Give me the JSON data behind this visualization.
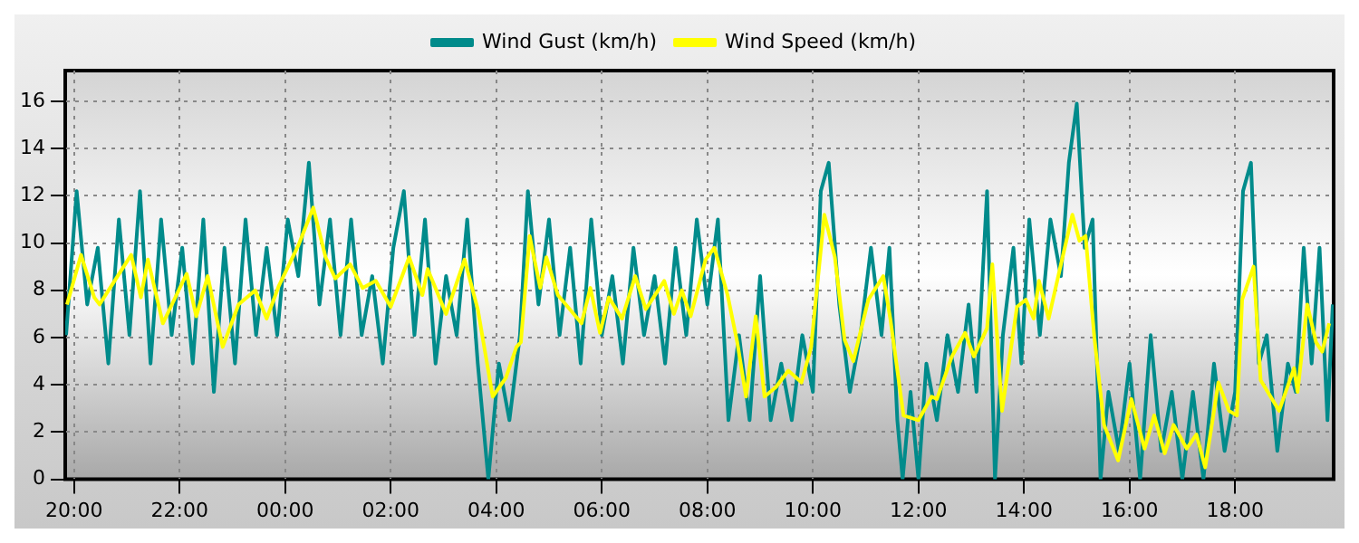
{
  "chart_data": {
    "type": "line",
    "legend": "top",
    "grid": true,
    "marker": "none",
    "line_style": "solid",
    "xlim": [
      "2000-01-01T19:50",
      "2000-01-02T19:52"
    ],
    "xticks": [
      {
        "value": "2000-01-01T20:00",
        "label": "20:00"
      },
      {
        "value": "2000-01-01T22:00",
        "label": "22:00"
      },
      {
        "value": "2000-01-02T00:00",
        "label": "00:00"
      },
      {
        "value": "2000-01-02T02:00",
        "label": "02:00"
      },
      {
        "value": "2000-01-02T04:00",
        "label": "04:00"
      },
      {
        "value": "2000-01-02T06:00",
        "label": "06:00"
      },
      {
        "value": "2000-01-02T08:00",
        "label": "08:00"
      },
      {
        "value": "2000-01-02T10:00",
        "label": "10:00"
      },
      {
        "value": "2000-01-02T12:00",
        "label": "12:00"
      },
      {
        "value": "2000-01-02T14:00",
        "label": "14:00"
      },
      {
        "value": "2000-01-02T16:00",
        "label": "16:00"
      },
      {
        "value": "2000-01-02T18:00",
        "label": "18:00"
      }
    ],
    "ylim": [
      0,
      17.3
    ],
    "yticks": [
      0,
      2,
      4,
      6,
      8,
      10,
      12,
      14,
      16
    ],
    "series": [
      {
        "name": "Wind Gust (km/h)",
        "color": "#008b8b",
        "x": [
          "2000-01-01T19:51",
          "2000-01-01T20:03",
          "2000-01-01T20:15",
          "2000-01-01T20:27",
          "2000-01-01T20:39",
          "2000-01-01T20:51",
          "2000-01-01T21:03",
          "2000-01-01T21:15",
          "2000-01-01T21:27",
          "2000-01-01T21:39",
          "2000-01-01T21:51",
          "2000-01-01T22:03",
          "2000-01-01T22:15",
          "2000-01-01T22:27",
          "2000-01-01T22:39",
          "2000-01-01T22:51",
          "2000-01-01T23:03",
          "2000-01-01T23:15",
          "2000-01-01T23:27",
          "2000-01-01T23:39",
          "2000-01-01T23:51",
          "2000-01-02T00:03",
          "2000-01-02T00:15",
          "2000-01-02T00:27",
          "2000-01-02T00:39",
          "2000-01-02T00:51",
          "2000-01-02T01:03",
          "2000-01-02T01:15",
          "2000-01-02T01:27",
          "2000-01-02T01:39",
          "2000-01-02T01:51",
          "2000-01-02T02:03",
          "2000-01-02T02:15",
          "2000-01-02T02:27",
          "2000-01-02T02:39",
          "2000-01-02T02:51",
          "2000-01-02T03:03",
          "2000-01-02T03:15",
          "2000-01-02T03:27",
          "2000-01-02T03:39",
          "2000-01-02T03:51",
          "2000-01-02T04:03",
          "2000-01-02T04:15",
          "2000-01-02T04:27",
          "2000-01-02T04:36",
          "2000-01-02T04:48",
          "2000-01-02T05:00",
          "2000-01-02T05:12",
          "2000-01-02T05:24",
          "2000-01-02T05:36",
          "2000-01-02T05:48",
          "2000-01-02T06:00",
          "2000-01-02T06:12",
          "2000-01-02T06:24",
          "2000-01-02T06:36",
          "2000-01-02T06:48",
          "2000-01-02T07:00",
          "2000-01-02T07:12",
          "2000-01-02T07:24",
          "2000-01-02T07:36",
          "2000-01-02T07:48",
          "2000-01-02T08:00",
          "2000-01-02T08:12",
          "2000-01-02T08:24",
          "2000-01-02T08:36",
          "2000-01-02T08:48",
          "2000-01-02T09:00",
          "2000-01-02T09:12",
          "2000-01-02T09:24",
          "2000-01-02T09:36",
          "2000-01-02T09:48",
          "2000-01-02T10:00",
          "2000-01-02T10:09",
          "2000-01-02T10:18",
          "2000-01-02T10:30",
          "2000-01-02T10:42",
          "2000-01-02T10:54",
          "2000-01-02T11:06",
          "2000-01-02T11:18",
          "2000-01-02T11:27",
          "2000-01-02T11:36",
          "2000-01-02T11:42",
          "2000-01-02T11:51",
          "2000-01-02T12:00",
          "2000-01-02T12:09",
          "2000-01-02T12:21",
          "2000-01-02T12:33",
          "2000-01-02T12:45",
          "2000-01-02T12:57",
          "2000-01-02T13:06",
          "2000-01-02T13:18",
          "2000-01-02T13:27",
          "2000-01-02T13:36",
          "2000-01-02T13:48",
          "2000-01-02T13:57",
          "2000-01-02T14:06",
          "2000-01-02T14:18",
          "2000-01-02T14:30",
          "2000-01-02T14:42",
          "2000-01-02T14:51",
          "2000-01-02T15:00",
          "2000-01-02T15:09",
          "2000-01-02T15:18",
          "2000-01-02T15:27",
          "2000-01-02T15:36",
          "2000-01-02T15:48",
          "2000-01-02T16:00",
          "2000-01-02T16:12",
          "2000-01-02T16:24",
          "2000-01-02T16:36",
          "2000-01-02T16:48",
          "2000-01-02T17:00",
          "2000-01-02T17:12",
          "2000-01-02T17:24",
          "2000-01-02T17:36",
          "2000-01-02T17:48",
          "2000-01-02T18:00",
          "2000-01-02T18:09",
          "2000-01-02T18:18",
          "2000-01-02T18:27",
          "2000-01-02T18:36",
          "2000-01-02T18:48",
          "2000-01-02T19:00",
          "2000-01-02T19:09",
          "2000-01-02T19:18",
          "2000-01-02T19:27",
          "2000-01-02T19:36",
          "2000-01-02T19:45",
          "2000-01-02T19:51"
        ],
        "values": [
          6.1,
          12.2,
          7.4,
          9.8,
          4.9,
          11.0,
          6.1,
          12.2,
          4.9,
          11.0,
          6.1,
          9.8,
          4.9,
          11.0,
          3.7,
          9.8,
          4.9,
          11.0,
          6.1,
          9.8,
          6.1,
          11.0,
          8.6,
          13.4,
          7.4,
          11.0,
          6.1,
          11.0,
          6.1,
          8.6,
          4.9,
          9.8,
          12.2,
          6.1,
          11.0,
          4.9,
          8.6,
          6.1,
          11.0,
          4.9,
          0.0,
          4.9,
          2.5,
          6.1,
          12.2,
          7.4,
          11.0,
          6.1,
          9.8,
          4.9,
          11.0,
          6.1,
          8.6,
          4.9,
          9.8,
          6.1,
          8.6,
          4.9,
          9.8,
          6.1,
          11.0,
          7.4,
          11.0,
          2.5,
          6.1,
          2.5,
          8.6,
          2.5,
          4.9,
          2.5,
          6.1,
          3.7,
          12.2,
          13.4,
          7.4,
          3.7,
          6.1,
          9.8,
          6.1,
          9.8,
          2.5,
          0.0,
          3.7,
          0.0,
          4.9,
          2.5,
          6.1,
          3.7,
          7.4,
          3.7,
          12.2,
          0.0,
          6.1,
          9.8,
          4.9,
          11.0,
          6.1,
          11.0,
          8.6,
          13.4,
          15.9,
          9.8,
          11.0,
          0.0,
          3.7,
          1.2,
          4.9,
          0.0,
          6.1,
          1.2,
          3.7,
          0.0,
          3.7,
          0.0,
          4.9,
          1.2,
          3.7,
          12.2,
          13.4,
          4.9,
          6.1,
          1.2,
          4.9,
          3.7,
          9.8,
          4.9,
          9.8,
          2.5,
          7.4
        ]
      },
      {
        "name": "Wind Speed (km/h)",
        "color": "#ffff00",
        "x": [
          "2000-01-01T19:52",
          "2000-01-01T20:08",
          "2000-01-01T20:23",
          "2000-01-01T20:29",
          "2000-01-01T21:05",
          "2000-01-01T21:16",
          "2000-01-01T21:24",
          "2000-01-01T21:41",
          "2000-01-01T22:08",
          "2000-01-01T22:19",
          "2000-01-01T22:32",
          "2000-01-01T22:49",
          "2000-01-01T23:07",
          "2000-01-01T23:26",
          "2000-01-01T23:39",
          "2000-01-01T23:53",
          "2000-01-02T00:15",
          "2000-01-02T00:32",
          "2000-01-02T00:46",
          "2000-01-02T00:57",
          "2000-01-02T01:14",
          "2000-01-02T01:28",
          "2000-01-02T01:43",
          "2000-01-02T02:00",
          "2000-01-02T02:21",
          "2000-01-02T02:36",
          "2000-01-02T02:42",
          "2000-01-02T03:03",
          "2000-01-02T03:24",
          "2000-01-02T03:39",
          "2000-01-02T03:56",
          "2000-01-02T04:11",
          "2000-01-02T04:23",
          "2000-01-02T04:28",
          "2000-01-02T04:38",
          "2000-01-02T04:50",
          "2000-01-02T04:57",
          "2000-01-02T05:10",
          "2000-01-02T05:37",
          "2000-01-02T05:47",
          "2000-01-02T05:58",
          "2000-01-02T06:08",
          "2000-01-02T06:23",
          "2000-01-02T06:38",
          "2000-01-02T06:50",
          "2000-01-02T07:11",
          "2000-01-02T07:22",
          "2000-01-02T07:31",
          "2000-01-02T07:41",
          "2000-01-02T07:58",
          "2000-01-02T08:08",
          "2000-01-02T08:23",
          "2000-01-02T08:34",
          "2000-01-02T08:44",
          "2000-01-02T08:55",
          "2000-01-02T09:05",
          "2000-01-02T09:18",
          "2000-01-02T09:32",
          "2000-01-02T09:47",
          "2000-01-02T09:58",
          "2000-01-02T10:13",
          "2000-01-02T10:25",
          "2000-01-02T10:36",
          "2000-01-02T10:46",
          "2000-01-02T11:03",
          "2000-01-02T11:20",
          "2000-01-02T11:28",
          "2000-01-02T11:43",
          "2000-01-02T12:00",
          "2000-01-02T12:15",
          "2000-01-02T12:21",
          "2000-01-02T12:38",
          "2000-01-02T12:53",
          "2000-01-02T13:03",
          "2000-01-02T13:18",
          "2000-01-02T13:24",
          "2000-01-02T13:35",
          "2000-01-02T13:52",
          "2000-01-02T14:02",
          "2000-01-02T14:11",
          "2000-01-02T14:17",
          "2000-01-02T14:28",
          "2000-01-02T14:42",
          "2000-01-02T14:55",
          "2000-01-02T15:03",
          "2000-01-02T15:10",
          "2000-01-02T15:20",
          "2000-01-02T15:31",
          "2000-01-02T15:47",
          "2000-01-02T16:02",
          "2000-01-02T16:17",
          "2000-01-02T16:28",
          "2000-01-02T16:40",
          "2000-01-02T16:50",
          "2000-01-02T17:05",
          "2000-01-02T17:16",
          "2000-01-02T17:26",
          "2000-01-02T17:41",
          "2000-01-02T17:53",
          "2000-01-02T18:02",
          "2000-01-02T18:08",
          "2000-01-02T18:21",
          "2000-01-02T18:29",
          "2000-01-02T18:50",
          "2000-01-02T19:07",
          "2000-01-02T19:11",
          "2000-01-02T19:22",
          "2000-01-02T19:32",
          "2000-01-02T19:39",
          "2000-01-02T19:47"
        ],
        "values": [
          7.4,
          9.5,
          7.7,
          7.4,
          9.5,
          7.7,
          9.3,
          6.6,
          8.7,
          6.9,
          8.6,
          5.6,
          7.4,
          8.0,
          6.8,
          8.2,
          9.9,
          11.5,
          9.4,
          8.5,
          9.1,
          8.1,
          8.4,
          7.3,
          9.4,
          7.8,
          8.9,
          7.0,
          9.3,
          7.2,
          3.5,
          4.3,
          5.6,
          5.8,
          10.3,
          8.1,
          9.4,
          7.8,
          6.6,
          8.1,
          6.2,
          7.7,
          6.8,
          8.6,
          7.2,
          8.4,
          7.0,
          8.0,
          6.9,
          9.3,
          9.8,
          7.8,
          5.8,
          3.5,
          6.9,
          3.5,
          3.9,
          4.6,
          4.1,
          5.6,
          11.2,
          9.4,
          5.9,
          5.0,
          7.6,
          8.6,
          6.8,
          2.7,
          2.5,
          3.5,
          3.4,
          5.2,
          6.2,
          5.2,
          6.4,
          9.1,
          2.9,
          7.3,
          7.6,
          6.8,
          8.4,
          6.8,
          9.1,
          11.2,
          10.1,
          10.3,
          6.0,
          2.3,
          0.8,
          3.4,
          1.3,
          2.7,
          1.1,
          2.3,
          1.3,
          1.9,
          0.5,
          4.1,
          2.9,
          2.7,
          7.6,
          9.0,
          4.2,
          2.9,
          4.7,
          3.7,
          7.4,
          5.8,
          5.4,
          6.6
        ]
      }
    ]
  }
}
